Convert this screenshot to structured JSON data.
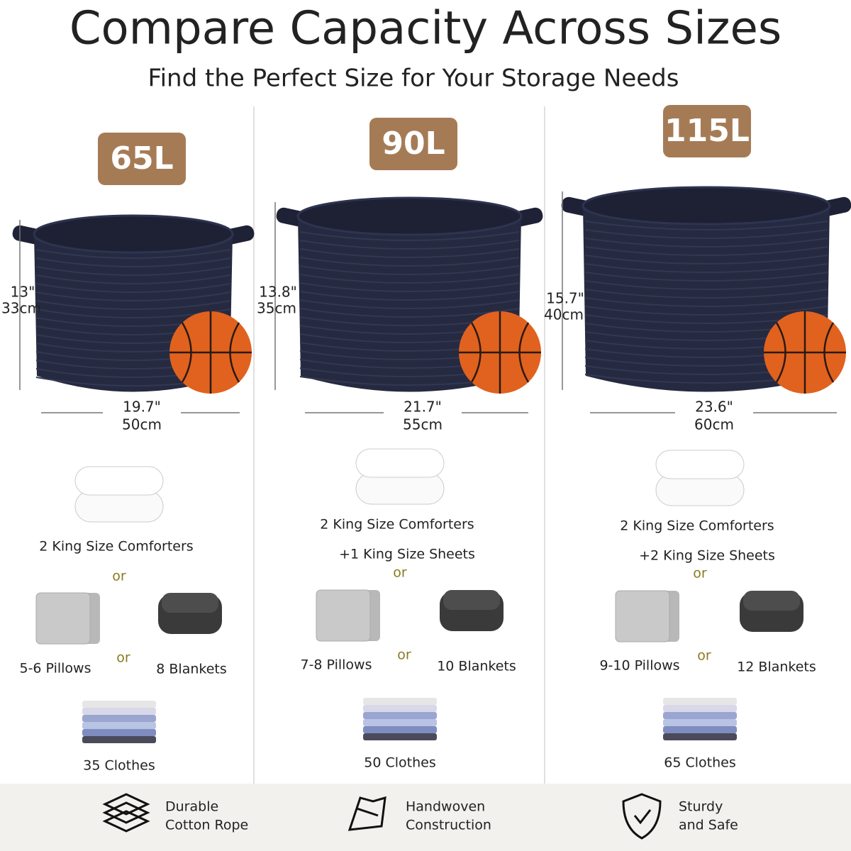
{
  "title": "Compare Capacity Across Sizes",
  "subtitle": "Find the Perfect Size for Your Storage Needs",
  "columns": [
    {
      "capacity": "65L",
      "height": [
        "13\"",
        "33cm"
      ],
      "width": [
        "19.7\"",
        "50cm"
      ],
      "comforters": "2 King Size Comforters",
      "or_top": "or",
      "pillows": "5-6 Pillows",
      "or_mid": "or",
      "blankets": "8 Blankets",
      "clothes": "35 Clothes"
    },
    {
      "capacity": "90L",
      "height": [
        "13.8\"",
        "35cm"
      ],
      "width": [
        "21.7\"",
        "55cm"
      ],
      "comforters": "2 King Size Comforters",
      "sheets": "+1 King Size Sheets",
      "or_top": "or",
      "pillows": "7-8 Pillows",
      "or_mid": "or",
      "blankets": "10 Blankets",
      "clothes": "50 Clothes"
    },
    {
      "capacity": "115L",
      "height": [
        "15.7\"",
        "40cm"
      ],
      "width": [
        "23.6\"",
        "60cm"
      ],
      "comforters": "2 King Size Comforters",
      "sheets": "+2 King Size Sheets",
      "or_top": "or",
      "pillows": "9-10 Pillows",
      "or_mid": "or",
      "blankets": "12 Blankets",
      "clothes": "65 Clothes"
    }
  ],
  "features": [
    {
      "lines": [
        "Durable",
        "Cotton Rope"
      ]
    },
    {
      "lines": [
        "Handwoven",
        "Construction"
      ]
    },
    {
      "lines": [
        "Sturdy",
        "and Safe"
      ]
    }
  ]
}
